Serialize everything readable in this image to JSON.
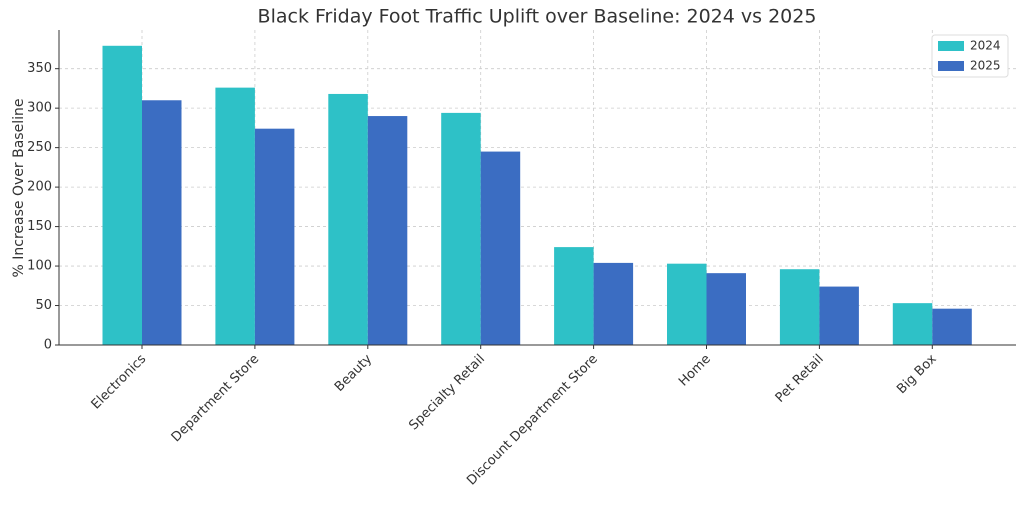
{
  "chart_data": {
    "type": "bar",
    "title": "Black Friday Foot Traffic Uplift over Baseline: 2024 vs 2025",
    "y_label": "% Increase Over Baseline",
    "categories": [
      "Electronics",
      "Department Store",
      "Beauty",
      "Specialty Retail",
      "Discount Department Store",
      "Home",
      "Pet Retail",
      "Big Box"
    ],
    "series": [
      {
        "name": "2024",
        "color": "#2ec1c7",
        "values": [
          379,
          326,
          318,
          294,
          124,
          103,
          96,
          53
        ]
      },
      {
        "name": "2025",
        "color": "#3b6dc2",
        "values": [
          310,
          274,
          290,
          245,
          104,
          91,
          74,
          46
        ]
      }
    ],
    "ylim": [
      0,
      399
    ],
    "yticks": [
      0,
      50,
      100,
      150,
      200,
      250,
      300,
      350
    ],
    "grid": true,
    "legend": "upper-right"
  }
}
